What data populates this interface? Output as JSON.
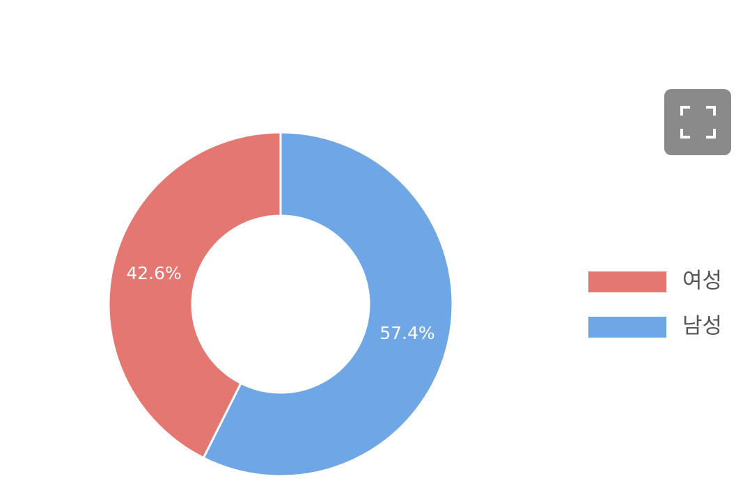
{
  "chart_data": {
    "type": "pie",
    "donut": true,
    "categories": [
      "여성",
      "남성"
    ],
    "values": [
      42.6,
      57.4
    ],
    "value_labels": [
      "42.6%",
      "57.4%"
    ],
    "colors": [
      "#e57773",
      "#6ea6e6"
    ],
    "legend": "right"
  }
}
